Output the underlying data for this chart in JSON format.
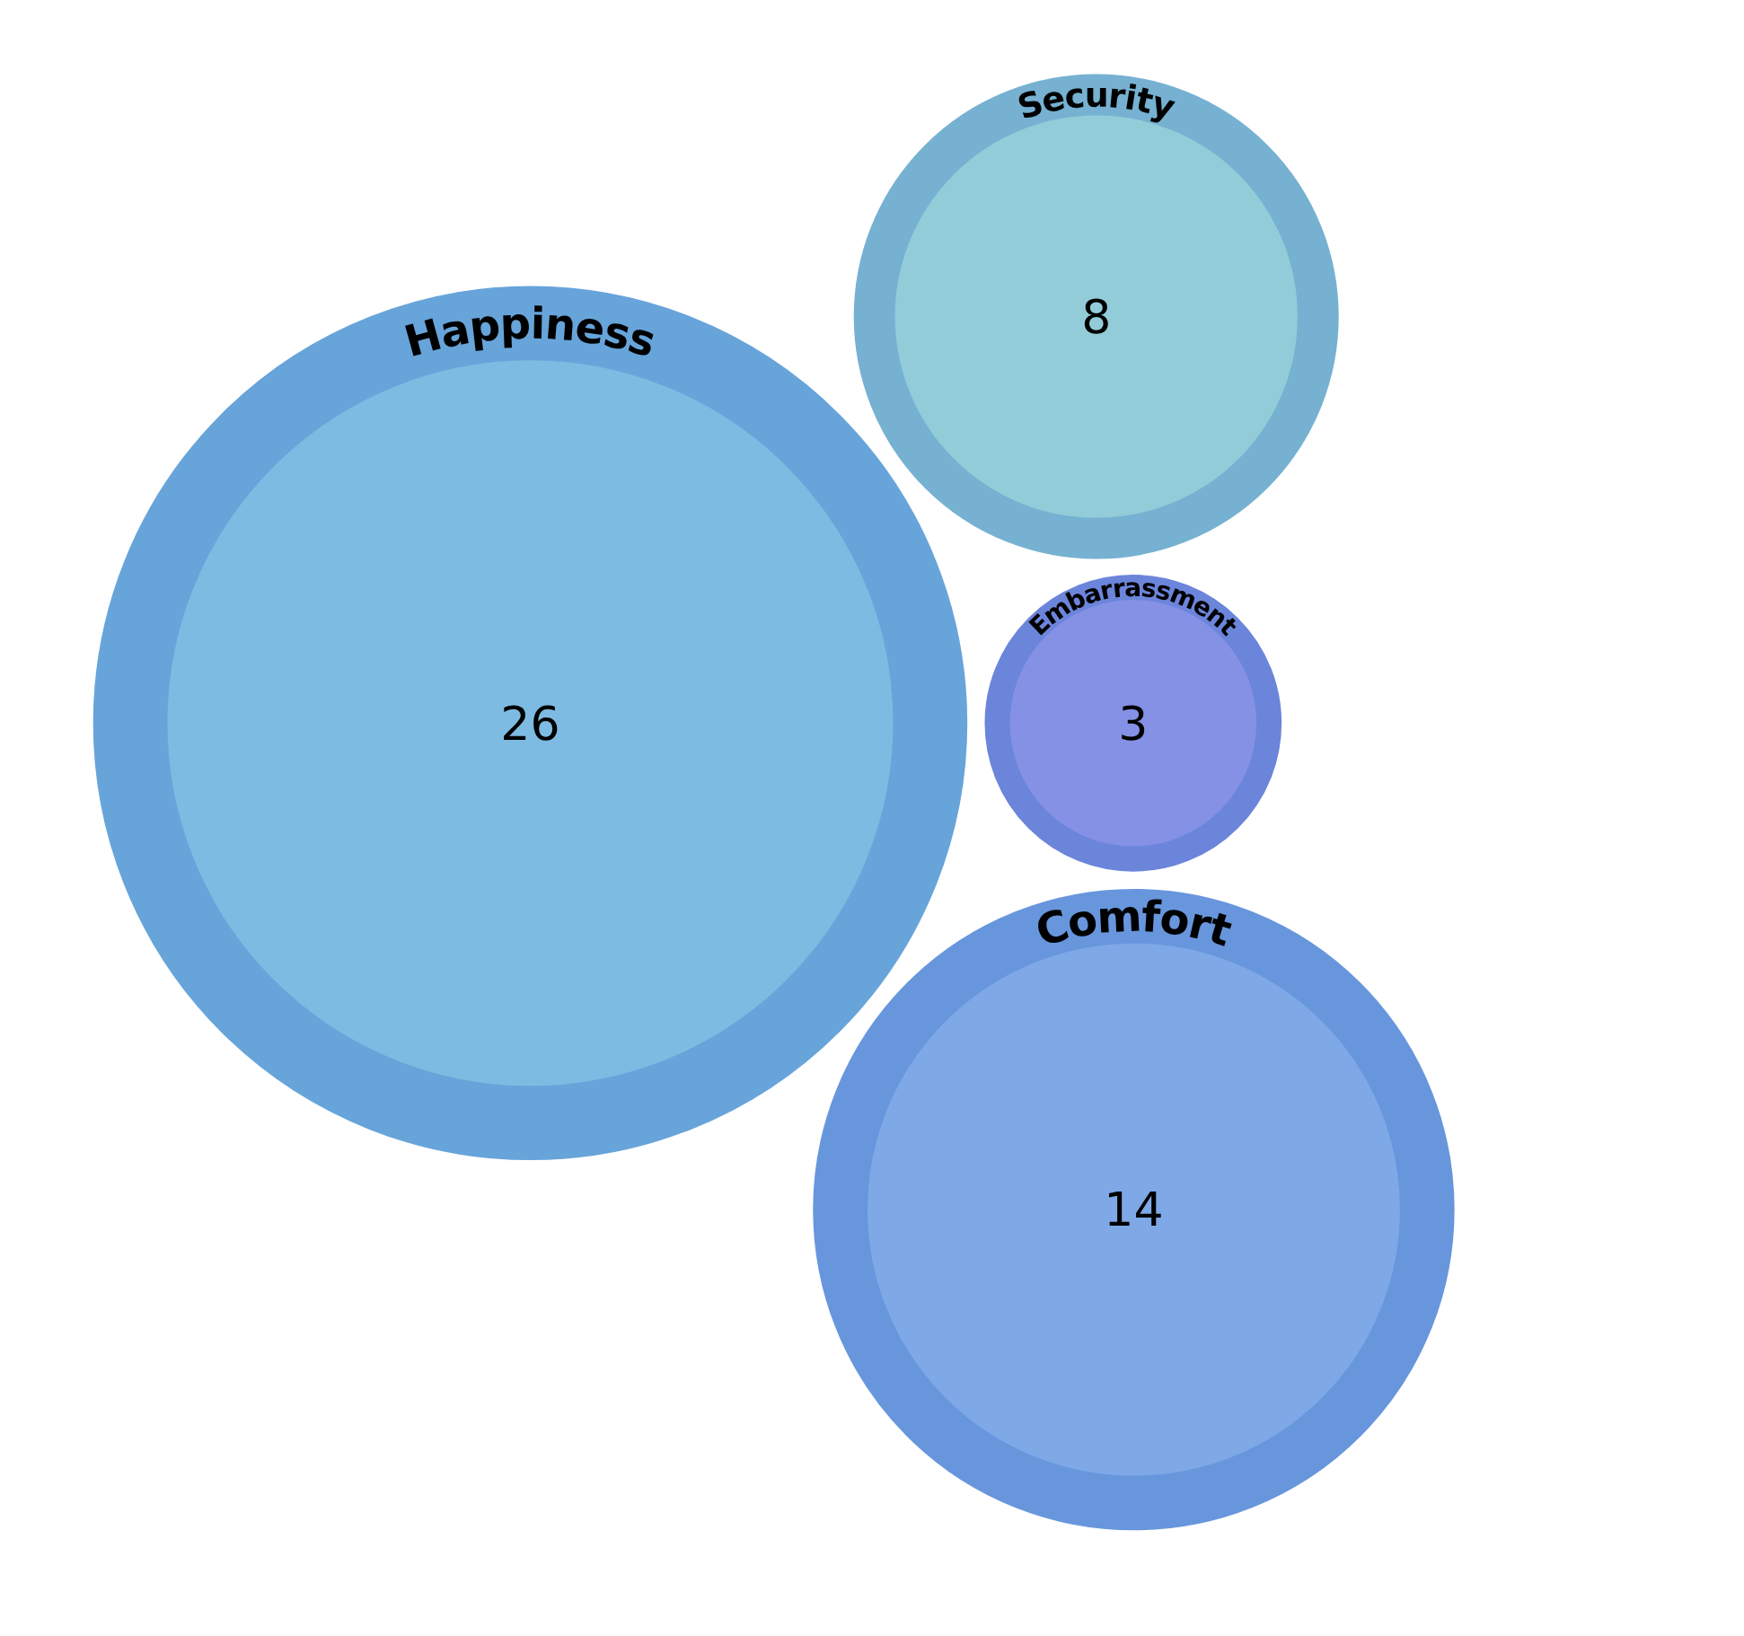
{
  "chart_data": {
    "type": "other",
    "categories": [
      "Happiness",
      "Embarrassment",
      "Comfort",
      "Security"
    ],
    "values": [
      26,
      3,
      14,
      8
    ],
    "colors": [
      "#7ebbe2",
      "#8491e4",
      "#7ea8e6",
      "#92ccd8"
    ],
    "data_labels": true
  }
}
